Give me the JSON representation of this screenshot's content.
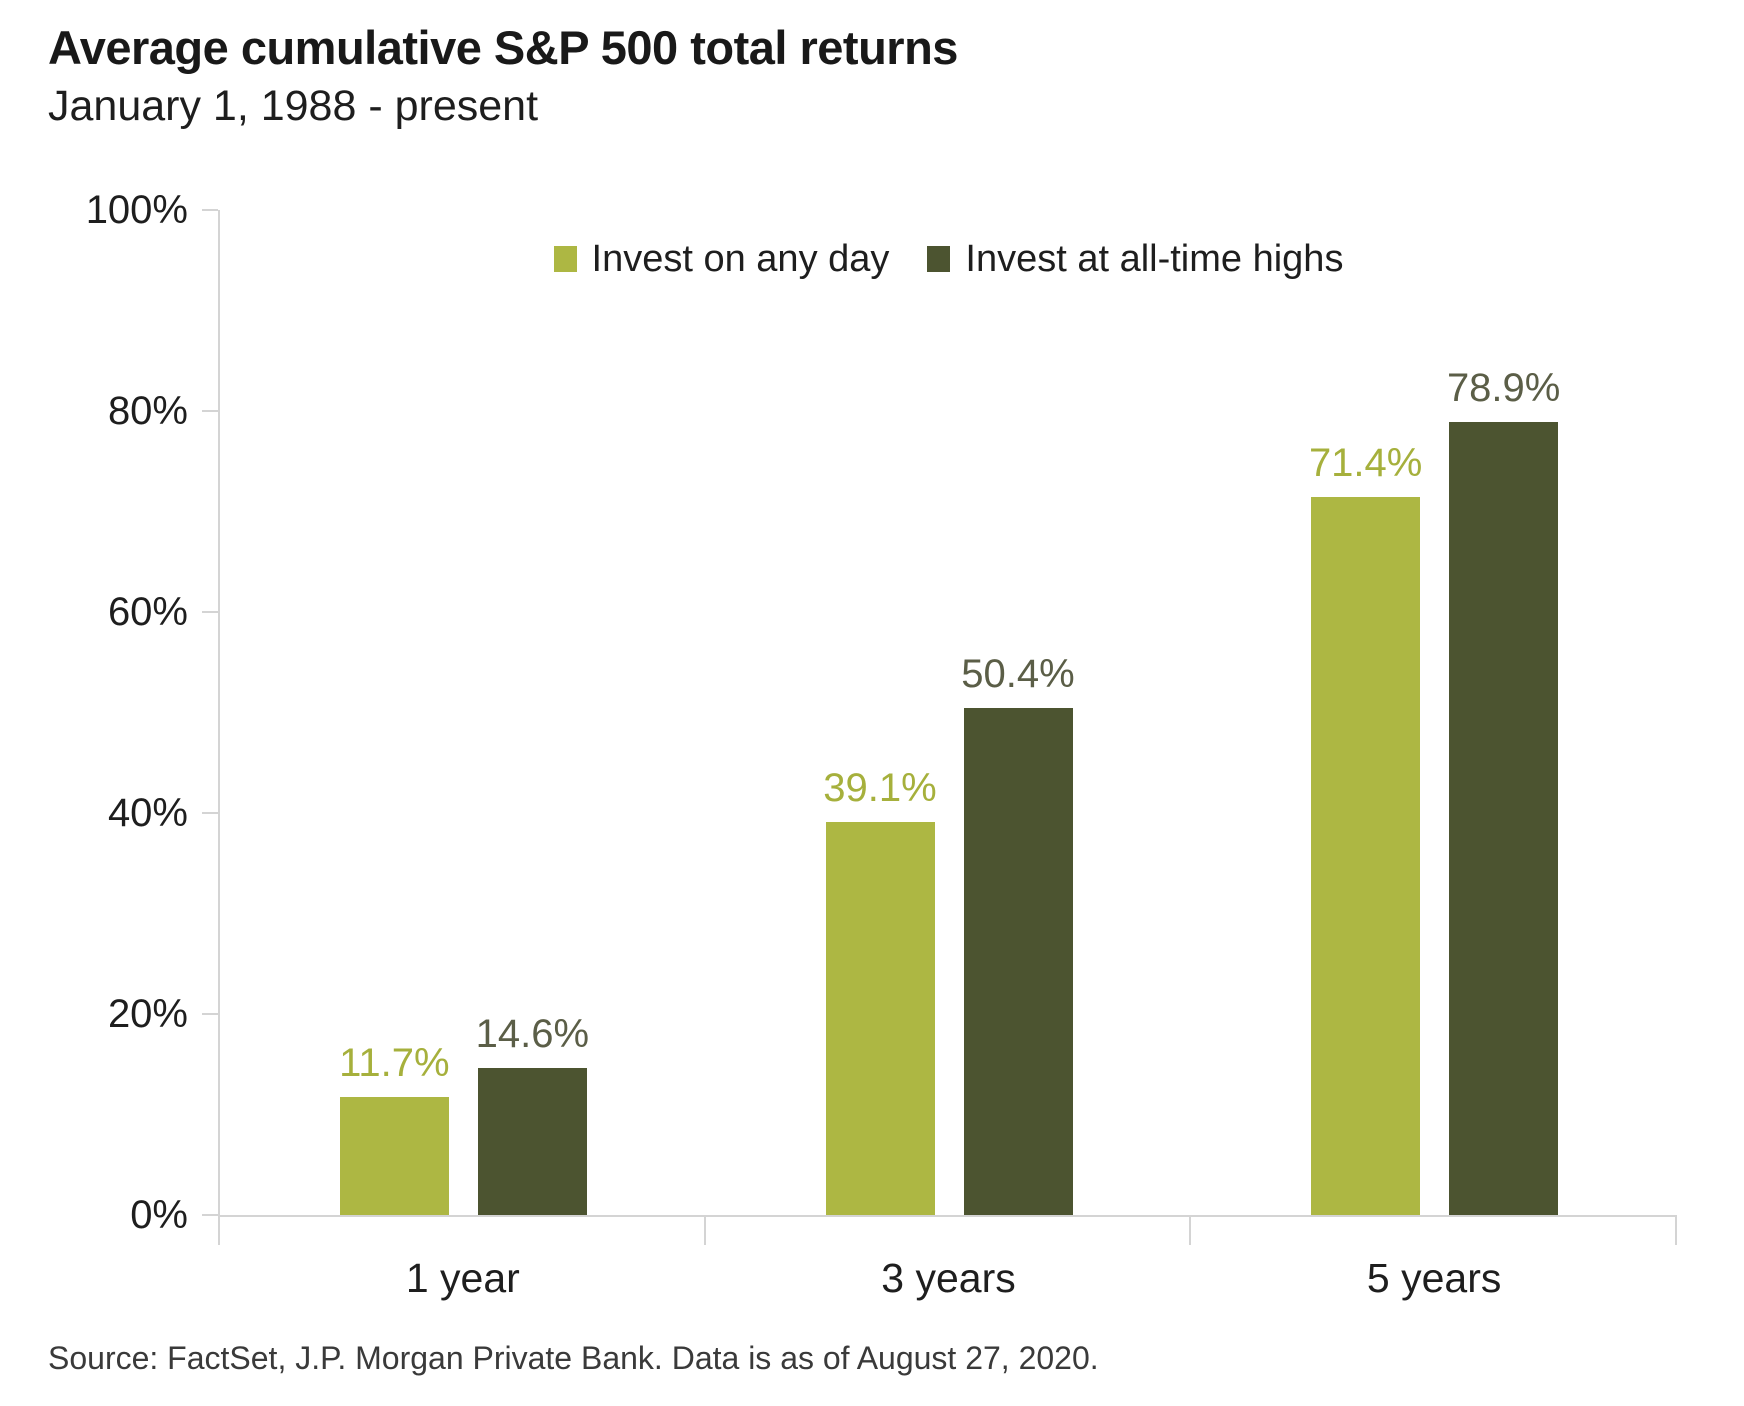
{
  "header": {
    "title": "Average cumulative S&P 500 total returns",
    "subtitle": "January 1, 1988 - present"
  },
  "chart_data": {
    "type": "bar",
    "title": "Average cumulative S&P 500 total returns",
    "subtitle": "January 1, 1988 - present",
    "categories": [
      "1 year",
      "3 years",
      "5 years"
    ],
    "series": [
      {
        "name": "Invest on any day",
        "values": [
          11.7,
          39.1,
          71.4
        ],
        "labels": [
          "11.7%",
          "39.1%",
          "71.4%"
        ],
        "color": "#adb743",
        "label_color": "#a6b03c"
      },
      {
        "name": "Invest at all-time highs",
        "values": [
          14.6,
          50.4,
          78.9
        ],
        "labels": [
          "14.6%",
          "50.4%",
          "78.9%"
        ],
        "color": "#4c5430",
        "label_color": "#5b5e47"
      }
    ],
    "xlabel": "",
    "ylabel": "",
    "ylim": [
      0,
      100
    ],
    "ytick_interval": 20,
    "ytick_labels": [
      "0%",
      "20%",
      "40%",
      "60%",
      "80%",
      "100%"
    ],
    "grid": false,
    "legend_position": "top-center",
    "axis_color": "#d4d4d4",
    "text_color": "#1e1e1e"
  },
  "footer": {
    "source": "Source: FactSet, J.P. Morgan Private Bank. Data is as of August 27, 2020."
  }
}
